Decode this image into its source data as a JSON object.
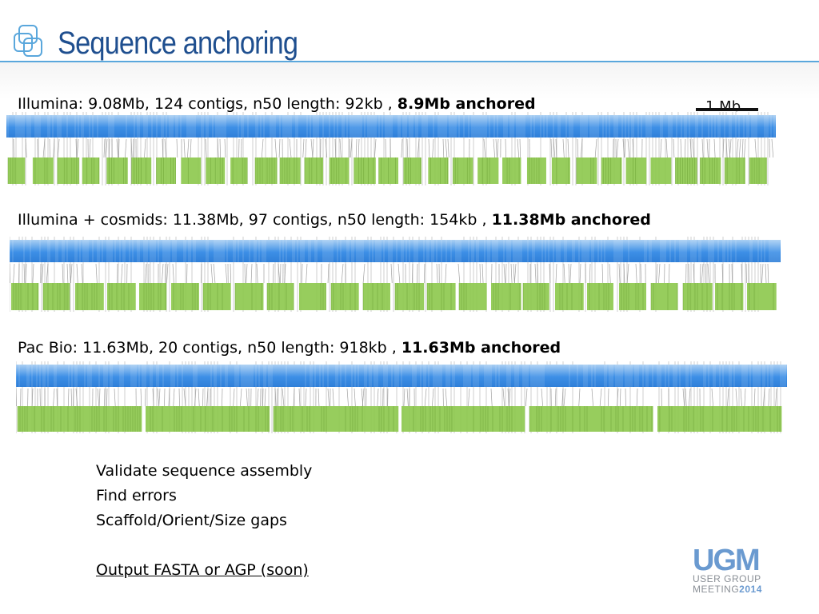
{
  "slide": {
    "title": "Sequence anchoring"
  },
  "tracks": [
    {
      "label_prefix": "Illumina: 9.08Mb, 124 contigs, n50 length: 92kb , ",
      "label_bold": "8.9Mb anchored",
      "assembly_mb": 9.08,
      "contigs": 124,
      "n50_kb": 92,
      "anchored_mb": 8.9
    },
    {
      "label_prefix": "Illumina + cosmids: 11.38Mb, 97 contigs, n50 length: 154kb , ",
      "label_bold": "11.38Mb anchored",
      "assembly_mb": 11.38,
      "contigs": 97,
      "n50_kb": 154,
      "anchored_mb": 11.38
    },
    {
      "label_prefix": "Pac Bio: 11.63Mb, 20 contigs, n50 length: 918kb , ",
      "label_bold": "11.63Mb anchored",
      "assembly_mb": 11.63,
      "contigs": 20,
      "n50_kb": 918,
      "anchored_mb": 11.63
    }
  ],
  "scale_bar": {
    "label": "1 Mb"
  },
  "bullets": {
    "line1": "Validate sequence assembly",
    "line2": "Find errors",
    "line3": "Scaffold/Orient/Size gaps",
    "output": "Output FASTA or AGP (soon)"
  },
  "logo": {
    "big": "UGM",
    "line1": "USER GROUP",
    "line2_a": "MEETING",
    "line2_b": "2014"
  },
  "colors": {
    "title": "#1f4f8f",
    "rule": "#5aa7dc",
    "map_bar": "#3d8fe6",
    "contig_green": "#8cc84b",
    "link_gray": "#8a8a8a"
  }
}
